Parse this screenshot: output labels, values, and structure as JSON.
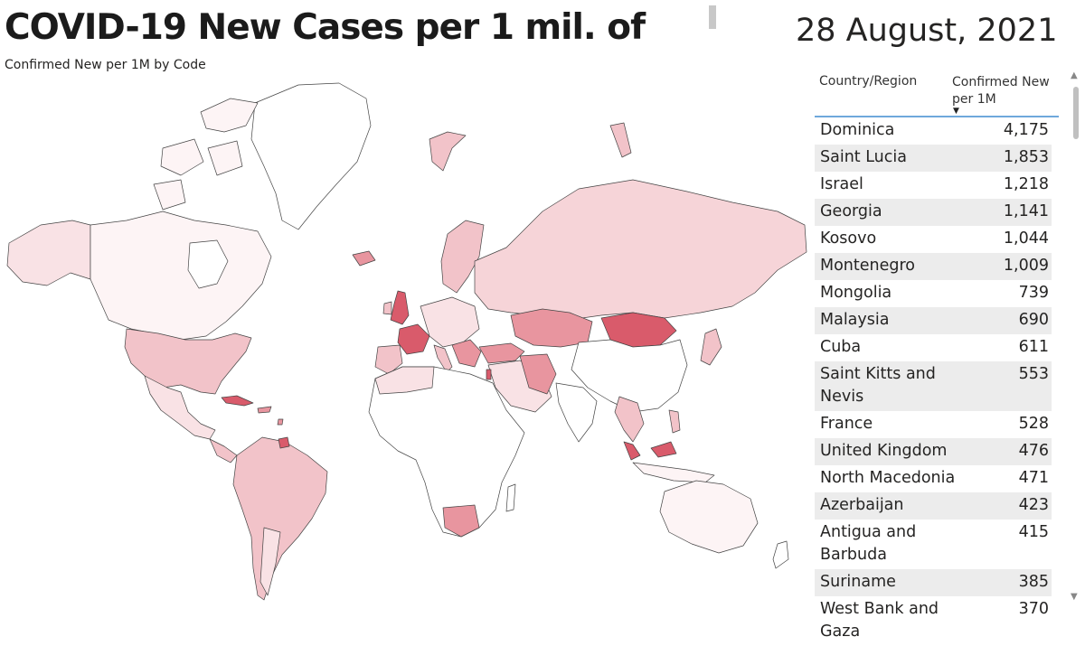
{
  "header": {
    "title": "COVID-19 New Cases per 1 mil. of",
    "date": "28 August, 2021",
    "subtitle": "Confirmed New per 1M by Code"
  },
  "map": {
    "base_color": "#fdf4f5",
    "stroke_color": "#444444",
    "legend_colors": {
      "very_high": "#d95b6b",
      "high": "#e8959f",
      "medium": "#f2c3c9",
      "low": "#f9e2e5",
      "no_data": "#ffffff"
    }
  },
  "table": {
    "col_country": "Country/Region",
    "col_value": "Confirmed New per 1M",
    "sort_indicator": "▼",
    "rows": [
      {
        "country": "Dominica",
        "value": "4,175"
      },
      {
        "country": "Saint Lucia",
        "value": "1,853"
      },
      {
        "country": "Israel",
        "value": "1,218"
      },
      {
        "country": "Georgia",
        "value": "1,141"
      },
      {
        "country": "Kosovo",
        "value": "1,044"
      },
      {
        "country": "Montenegro",
        "value": "1,009"
      },
      {
        "country": "Mongolia",
        "value": "739"
      },
      {
        "country": "Malaysia",
        "value": "690"
      },
      {
        "country": "Cuba",
        "value": "611"
      },
      {
        "country": "Saint Kitts and Nevis",
        "value": "553"
      },
      {
        "country": "France",
        "value": "528"
      },
      {
        "country": "United Kingdom",
        "value": "476"
      },
      {
        "country": "North Macedonia",
        "value": "471"
      },
      {
        "country": "Azerbaijan",
        "value": "423"
      },
      {
        "country": "Antigua and Barbuda",
        "value": "415"
      },
      {
        "country": "Suriname",
        "value": "385"
      },
      {
        "country": "West Bank and Gaza",
        "value": "370"
      }
    ]
  },
  "scrollbar": {
    "up_icon": "triangle-up-icon",
    "down_icon": "triangle-down-icon"
  }
}
